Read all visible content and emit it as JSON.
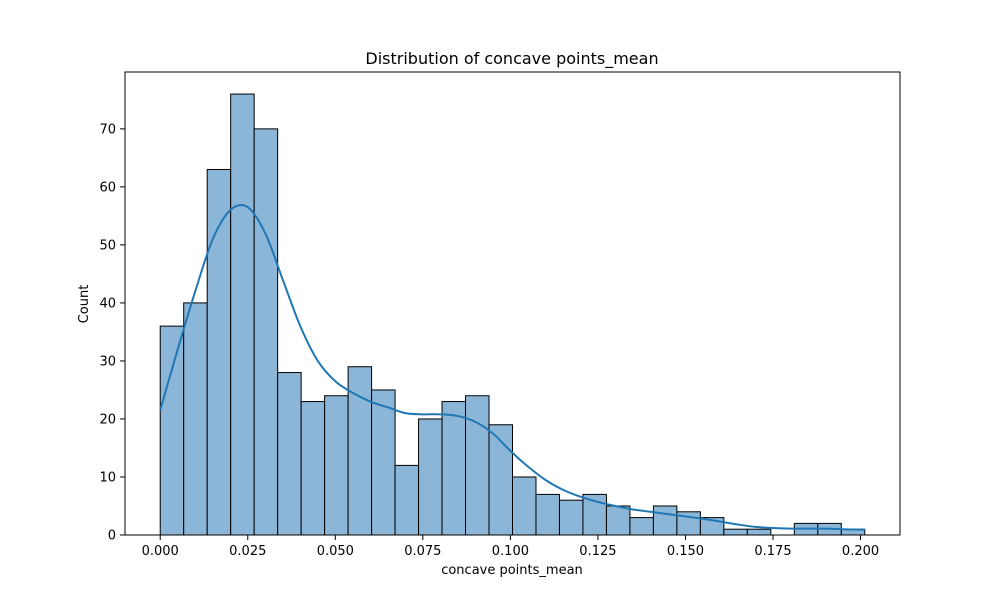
{
  "chart_data": {
    "type": "bar",
    "title": "Distribution of concave points_mean",
    "xlabel": "concave points_mean",
    "ylabel": "Count",
    "xlim": [
      -0.01006,
      0.21127
    ],
    "ylim": [
      0,
      79.8
    ],
    "x_ticks": [
      "0.000",
      "0.025",
      "0.050",
      "0.075",
      "0.100",
      "0.125",
      "0.150",
      "0.175",
      "0.200"
    ],
    "x_tick_values": [
      0,
      0.025,
      0.05,
      0.075,
      0.1,
      0.125,
      0.15,
      0.175,
      0.2
    ],
    "y_ticks": [
      "0",
      "10",
      "20",
      "30",
      "40",
      "50",
      "60",
      "70"
    ],
    "y_tick_values": [
      0,
      10,
      20,
      30,
      40,
      50,
      60,
      70
    ],
    "bin_edges": [
      0,
      0.006707,
      0.013414,
      0.020121,
      0.026828,
      0.033535,
      0.040242,
      0.046949,
      0.053656,
      0.060363,
      0.06707,
      0.073777,
      0.080484,
      0.087191,
      0.093898,
      0.100605,
      0.107312,
      0.114019,
      0.120726,
      0.127433,
      0.13414,
      0.140847,
      0.147554,
      0.154261,
      0.160968,
      0.167675,
      0.174382,
      0.181089,
      0.187796,
      0.194503,
      0.2012
    ],
    "values": [
      36,
      40,
      63,
      76,
      70,
      28,
      23,
      24,
      29,
      25,
      12,
      20,
      23,
      24,
      19,
      10,
      7,
      6,
      7,
      5,
      3,
      5,
      4,
      3,
      1,
      1,
      0,
      2,
      2,
      1
    ],
    "kde": {
      "x": [
        0,
        0.005,
        0.01,
        0.015,
        0.02,
        0.025,
        0.03,
        0.035,
        0.04,
        0.045,
        0.05,
        0.055,
        0.06,
        0.065,
        0.07,
        0.075,
        0.08,
        0.085,
        0.09,
        0.095,
        0.1,
        0.105,
        0.11,
        0.115,
        0.12,
        0.125,
        0.13,
        0.135,
        0.14,
        0.145,
        0.15,
        0.155,
        0.16,
        0.165,
        0.17,
        0.175,
        0.18,
        0.185,
        0.19,
        0.195,
        0.2012
      ],
      "y": [
        21.5,
        32,
        42,
        51,
        56,
        56.5,
        52,
        44,
        36,
        30,
        26.5,
        24.5,
        23,
        22,
        21,
        20.8,
        20.8,
        20.5,
        19.5,
        17.5,
        14.5,
        11.8,
        9.5,
        7.8,
        6.6,
        5.7,
        5,
        4.4,
        4,
        3.6,
        3.2,
        2.8,
        2.3,
        1.8,
        1.4,
        1.2,
        1.1,
        1.1,
        1.1,
        1,
        0.9
      ]
    },
    "colors": {
      "bar_fill": "#8cb6d8",
      "bar_edge": "#000000",
      "kde_line": "#1f77b4"
    },
    "grid": false,
    "legend": "none"
  }
}
